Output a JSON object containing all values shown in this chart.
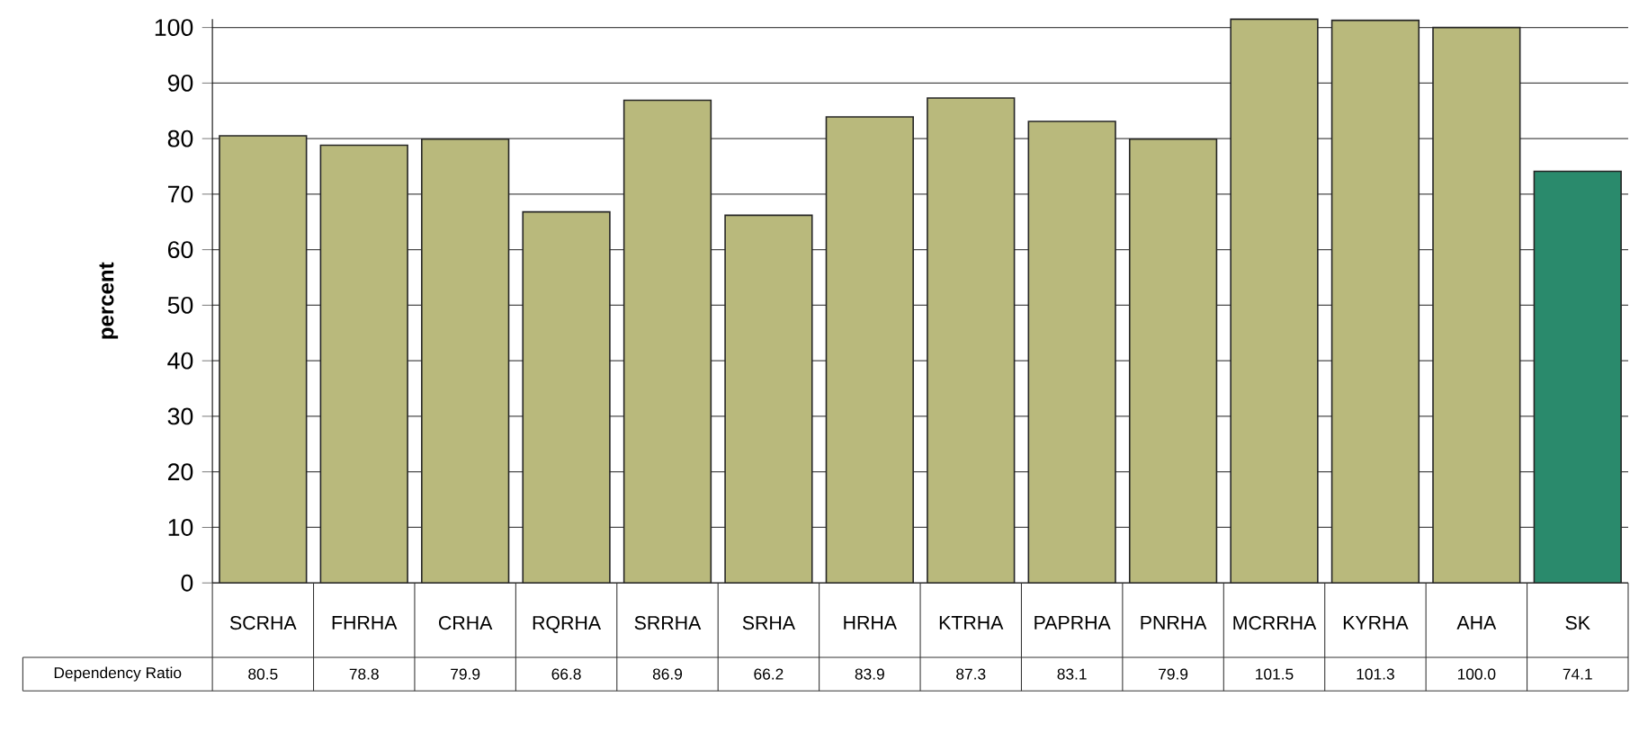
{
  "chart_data": {
    "type": "bar",
    "ylabel": "percent",
    "categories": [
      "SCRHA",
      "FHRHA",
      "CRHA",
      "RQRHA",
      "SRRHA",
      "SRHA",
      "HRHA",
      "KTRHA",
      "PAPRHA",
      "PNRHA",
      "MCRRHA",
      "KYRHA",
      "AHA",
      "SK"
    ],
    "series": [
      {
        "name": "Dependency Ratio",
        "values": [
          80.5,
          78.8,
          79.9,
          66.8,
          86.9,
          66.2,
          83.9,
          87.3,
          83.1,
          79.9,
          101.5,
          101.3,
          100.0,
          74.1
        ],
        "value_labels": [
          "80.5",
          "78.8",
          "79.9",
          "66.8",
          "86.9",
          "66.2",
          "83.9",
          "87.3",
          "83.1",
          "79.9",
          "101.5",
          "101.3",
          "100.0",
          "74.1"
        ]
      }
    ],
    "colors": [
      "#b9b97c",
      "#b9b97c",
      "#b9b97c",
      "#b9b97c",
      "#b9b97c",
      "#b9b97c",
      "#b9b97c",
      "#b9b97c",
      "#b9b97c",
      "#b9b97c",
      "#b9b97c",
      "#b9b97c",
      "#b9b97c",
      "#2a8a6c"
    ],
    "ylim": [
      0,
      101.5
    ],
    "yticks": [
      0,
      10,
      20,
      30,
      40,
      50,
      60,
      70,
      80,
      90,
      100
    ],
    "grid": "y",
    "legend": "bottom left"
  }
}
